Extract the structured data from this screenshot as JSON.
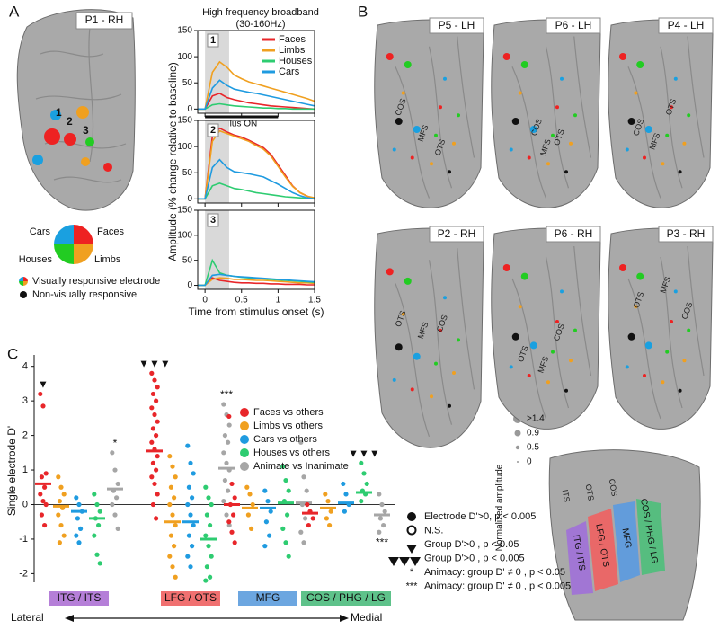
{
  "panel_labels": [
    "A",
    "B",
    "C"
  ],
  "panel_a": {
    "brain_label": "P1 - RH",
    "electrode_labels": [
      "1",
      "2",
      "3"
    ],
    "pie_legend": {
      "cars": "Cars",
      "faces": "Faces",
      "houses": "Houses",
      "limbs": "Limbs"
    },
    "legend": [
      "Visually responsive electrode",
      "Non-visually responsive"
    ]
  },
  "panel_b": {
    "brains": [
      {
        "label": "P5 - LH",
        "sulci": [
          "COS",
          "MFS",
          "OTS"
        ]
      },
      {
        "label": "P6 - LH",
        "sulci": [
          "COS",
          "MFS",
          "OTS"
        ]
      },
      {
        "label": "P4 - LH",
        "sulci": [
          "COS",
          "MFS",
          "OTS"
        ]
      },
      {
        "label": "P2 - RH",
        "sulci": [
          "OTS",
          "MFS",
          "COS"
        ]
      },
      {
        "label": "P6 - RH",
        "sulci": [
          "OTS",
          "MFS",
          "COS"
        ]
      },
      {
        "label": "P3 - RH",
        "sulci": [
          "OTS",
          "MFS",
          "COS"
        ]
      }
    ],
    "size_legend": {
      "title": "Normalized amplitude",
      "levels": [
        ">1.4",
        "0.9",
        "0.5",
        "0"
      ]
    },
    "roi_map": {
      "labels": [
        "ITG / ITS",
        "LFG / OTS",
        "MFG",
        "COS / PHG / LG"
      ],
      "sulci": [
        "ITS",
        "OTS",
        "COS"
      ]
    }
  },
  "panel_c": {
    "arrow": {
      "left": "Lateral",
      "right": "Medial"
    },
    "notes": [
      {
        "text": "Electrode D'>0, p < 0.005"
      },
      {
        "text": "N.S."
      },
      {
        "text": "Group D'>0 , p < 0.05"
      },
      {
        "text": "Group D'>0 , p < 0.005"
      },
      {
        "symbol": "*",
        "text": "Animacy: group D' ≠ 0 , p < 0.05"
      },
      {
        "symbol": "***",
        "text": "Animacy: group D' ≠ 0 , p < 0.005"
      }
    ]
  },
  "chart_data": [
    {
      "type": "line",
      "title": "High frequency broadband",
      "subtitle": "(30-160Hz)",
      "panel_number": "1",
      "annotation": "Stimulus ON",
      "stimulus_on": [
        0,
        1
      ],
      "shade": [
        0,
        0.33
      ],
      "legend": "upper right",
      "x": [
        -0.1,
        0,
        0.1,
        0.2,
        0.3,
        0.4,
        0.5,
        0.6,
        0.7,
        0.8,
        0.9,
        1,
        1.1,
        1.2,
        1.3,
        1.4,
        1.5
      ],
      "series": [
        {
          "name": "Faces",
          "color": "#e8262a",
          "values": [
            0,
            0,
            25,
            30,
            22,
            18,
            15,
            12,
            10,
            8,
            6,
            5,
            4,
            3,
            2,
            1,
            0
          ]
        },
        {
          "name": "Limbs",
          "color": "#f0a020",
          "values": [
            0,
            0,
            70,
            90,
            80,
            65,
            58,
            52,
            48,
            44,
            40,
            36,
            32,
            28,
            24,
            20,
            15
          ]
        },
        {
          "name": "Houses",
          "color": "#2ecc71",
          "values": [
            0,
            0,
            8,
            10,
            8,
            6,
            5,
            4,
            3,
            2,
            2,
            1,
            1,
            0,
            0,
            0,
            0
          ]
        },
        {
          "name": "Cars",
          "color": "#1f9be0",
          "values": [
            0,
            0,
            40,
            55,
            45,
            38,
            35,
            32,
            30,
            27,
            24,
            21,
            18,
            15,
            12,
            9,
            6
          ]
        }
      ],
      "xlim": [
        -0.1,
        1.5
      ],
      "xticks": [
        0,
        0.5,
        1,
        1.5
      ],
      "ylim": [
        -8,
        150
      ],
      "yticks": [
        0,
        50,
        100,
        150
      ]
    },
    {
      "type": "line",
      "panel_number": "2",
      "shade": [
        0,
        0.33
      ],
      "x": [
        -0.1,
        0,
        0.1,
        0.2,
        0.3,
        0.4,
        0.5,
        0.6,
        0.7,
        0.8,
        0.9,
        1,
        1.1,
        1.2,
        1.3,
        1.4,
        1.5
      ],
      "series": [
        {
          "color": "#e8262a",
          "values": [
            0,
            0,
            120,
            135,
            128,
            122,
            118,
            112,
            105,
            98,
            85,
            65,
            45,
            25,
            12,
            5,
            0
          ]
        },
        {
          "color": "#f0a020",
          "values": [
            0,
            0,
            110,
            130,
            125,
            120,
            115,
            110,
            102,
            95,
            82,
            62,
            42,
            24,
            12,
            5,
            2
          ]
        },
        {
          "color": "#2ecc71",
          "values": [
            0,
            0,
            25,
            30,
            25,
            20,
            18,
            15,
            12,
            10,
            8,
            6,
            4,
            3,
            2,
            1,
            0
          ]
        },
        {
          "color": "#1f9be0",
          "values": [
            0,
            0,
            60,
            75,
            60,
            52,
            50,
            48,
            45,
            42,
            35,
            28,
            20,
            12,
            6,
            2,
            0
          ]
        }
      ],
      "ylabel": "Amplitude (% change relative to baseline)",
      "xlim": [
        -0.1,
        1.5
      ],
      "xticks": [
        0,
        0.5,
        1,
        1.5
      ],
      "ylim": [
        -8,
        150
      ],
      "yticks": [
        0,
        50,
        100,
        150
      ]
    },
    {
      "type": "line",
      "panel_number": "3",
      "shade": [
        0,
        0.33
      ],
      "x": [
        -0.1,
        0,
        0.1,
        0.2,
        0.3,
        0.4,
        0.5,
        0.6,
        0.7,
        0.8,
        0.9,
        1,
        1.1,
        1.2,
        1.3,
        1.4,
        1.5
      ],
      "series": [
        {
          "color": "#e8262a",
          "values": [
            0,
            0,
            15,
            10,
            8,
            6,
            5,
            5,
            4,
            4,
            3,
            3,
            2,
            2,
            2,
            1,
            1
          ]
        },
        {
          "color": "#f0a020",
          "values": [
            0,
            0,
            12,
            15,
            14,
            12,
            12,
            11,
            10,
            10,
            9,
            8,
            7,
            6,
            5,
            5,
            4
          ]
        },
        {
          "color": "#2ecc71",
          "values": [
            0,
            0,
            50,
            25,
            20,
            18,
            16,
            15,
            14,
            13,
            12,
            11,
            10,
            9,
            8,
            7,
            6
          ]
        },
        {
          "color": "#1f9be0",
          "values": [
            0,
            0,
            20,
            22,
            20,
            18,
            17,
            16,
            15,
            14,
            13,
            12,
            11,
            10,
            9,
            8,
            7
          ]
        }
      ],
      "xlabel": "Time from stimulus onset (s)",
      "xlim": [
        -0.1,
        1.5
      ],
      "xticks": [
        0,
        0.5,
        1,
        1.5
      ],
      "ylim": [
        -8,
        150
      ],
      "yticks": [
        0,
        50,
        100,
        150
      ]
    },
    {
      "type": "strip",
      "ylabel": "Single electrode D'",
      "categories": [
        "ITG / ITS",
        "LFG / OTS",
        "MFG",
        "COS / PHG / LG"
      ],
      "category_colors": [
        "#b57fd8",
        "#f07070",
        "#6ca6e0",
        "#5ec28a"
      ],
      "legend": "upper right",
      "series": [
        {
          "name": "Faces vs others",
          "color": "#e8262a",
          "values": [
            [
              3.2,
              2.85,
              0.9,
              0.8,
              0.5,
              0.3,
              0.1,
              0,
              -0.3,
              -0.6
            ],
            [
              3.8,
              3.6,
              3.4,
              3.2,
              3.0,
              2.8,
              2.6,
              2.4,
              2.2,
              2.0,
              1.8,
              1.6,
              1.4,
              1.2,
              1.0,
              0.8,
              0.6,
              0.3,
              0,
              -0.4
            ],
            [
              2.55,
              0.6,
              0.2,
              0,
              -0.3,
              -0.5,
              -0.8,
              -1.1
            ],
            [
              0,
              -0.2,
              -0.4,
              -0.6
            ]
          ],
          "means": [
            0.6,
            1.55,
            0,
            -0.25
          ],
          "markers": [
            "▼",
            "▼▼▼",
            null,
            null
          ]
        },
        {
          "name": "Limbs vs others",
          "color": "#f0a020",
          "values": [
            [
              0.8,
              0.5,
              0.3,
              0.1,
              -0.1,
              -0.3,
              -0.6,
              -0.9,
              -1.1
            ],
            [
              1.4,
              1.1,
              0.8,
              0.5,
              0.2,
              0,
              -0.3,
              -0.6,
              -0.9,
              -1.2,
              -1.5,
              -1.8,
              -2.1
            ],
            [
              0.5,
              0.3,
              0,
              -0.3,
              -0.7
            ],
            [
              0.3,
              0.1,
              -0.2,
              -0.4,
              -0.6
            ]
          ],
          "means": [
            -0.05,
            -0.5,
            -0.1,
            -0.1
          ],
          "markers": [
            null,
            null,
            null,
            null
          ]
        },
        {
          "name": "Cars vs others",
          "color": "#1f9be0",
          "values": [
            [
              0.2,
              0,
              -0.2,
              -0.4,
              -0.7,
              -0.9,
              -1.1
            ],
            [
              1.7,
              1.2,
              0.9,
              0.5,
              0.2,
              0,
              -0.3,
              -0.6,
              -0.9,
              -1.2,
              -1.5,
              -1.8
            ],
            [
              0.4,
              0.1,
              -0.2,
              -0.5,
              -0.9,
              -1.2
            ],
            [
              0.6,
              0.3,
              0,
              -0.2
            ]
          ],
          "means": [
            -0.2,
            -0.5,
            -0.1,
            0.05
          ],
          "markers": [
            null,
            null,
            null,
            null
          ]
        },
        {
          "name": "Houses vs others",
          "color": "#2ecc71",
          "values": [
            [
              0.3,
              0,
              -0.2,
              -0.4,
              -0.6,
              -0.9,
              -1.45,
              -1.7
            ],
            [
              0.5,
              0.2,
              0,
              -0.3,
              -0.6,
              -0.9,
              -1.2,
              -1.5,
              -1.8,
              -2.1,
              -2.2
            ],
            [
              1.1,
              0.7,
              0.4,
              0.1,
              -0.3,
              -0.7,
              -1.1,
              -1.5
            ],
            [
              1.2,
              0.9,
              0.6,
              0.4,
              0.3,
              0.1
            ]
          ],
          "means": [
            -0.4,
            -1.0,
            0.05,
            0.35
          ],
          "markers": [
            null,
            null,
            null,
            "▼▼▼"
          ]
        },
        {
          "name": "Animate vs Inanimate",
          "color": "#a6a6a6",
          "values": [
            [
              1.5,
              1.0,
              0.6,
              0.4,
              0.2,
              0,
              -0.3,
              -0.7
            ],
            [
              2.9,
              2.6,
              2.3,
              2.0,
              1.8,
              1.5,
              1.2,
              1.0,
              0.7,
              0.4,
              0.1,
              -0.3,
              -0.6
            ],
            [
              1.8,
              0.8,
              0.4,
              0,
              -0.4,
              -0.8,
              -1.1
            ],
            [
              0.3,
              0,
              -0.2,
              -0.4,
              -0.6,
              -0.8
            ]
          ],
          "means": [
            0.45,
            1.05,
            0.05,
            -0.3
          ],
          "markers": [
            "*",
            "***",
            null,
            "***"
          ]
        }
      ],
      "ylim": [
        -2.25,
        4.2
      ],
      "yticks": [
        -2,
        -1,
        0,
        1,
        2,
        3,
        4
      ]
    }
  ]
}
